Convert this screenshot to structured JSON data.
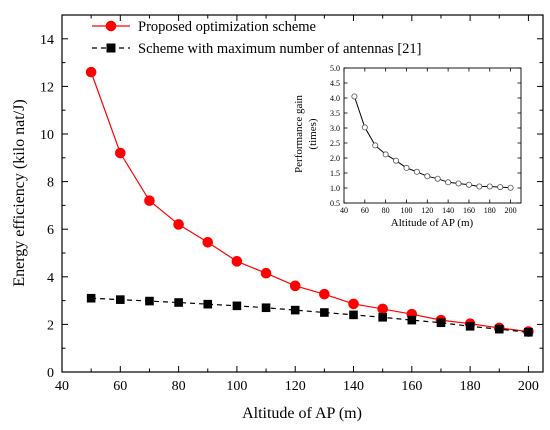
{
  "chart_data": [
    {
      "type": "line",
      "xlabel": "Altitude of AP (m)",
      "ylabel": "Energy efficiency (kilo nat/J)",
      "xlim": [
        40,
        205
      ],
      "ylim": [
        0,
        15
      ],
      "xticks": [
        "40",
        "60",
        "80",
        "100",
        "120",
        "140",
        "160",
        "180",
        "200"
      ],
      "yticks": [
        "0",
        "2",
        "4",
        "6",
        "8",
        "10",
        "12",
        "14"
      ],
      "legend_position": "top-left",
      "x": [
        50,
        60,
        70,
        80,
        90,
        100,
        110,
        120,
        130,
        140,
        150,
        160,
        170,
        180,
        190,
        200
      ],
      "series": [
        {
          "name": "Proposed optimization scheme",
          "color": "#ff0000",
          "line_style": "solid",
          "marker": "circle",
          "values": [
            12.6,
            9.2,
            7.2,
            6.2,
            5.45,
            4.65,
            4.15,
            3.62,
            3.27,
            2.86,
            2.65,
            2.43,
            2.18,
            2.03,
            1.85,
            1.7
          ]
        },
        {
          "name": "Scheme with maximum number of antennas [21]",
          "color": "#000000",
          "line_style": "dashed",
          "marker": "square",
          "values": [
            3.1,
            3.04,
            2.98,
            2.92,
            2.85,
            2.78,
            2.7,
            2.6,
            2.5,
            2.4,
            2.3,
            2.18,
            2.07,
            1.92,
            1.8,
            1.67
          ]
        }
      ]
    },
    {
      "type": "line",
      "position": "inset",
      "xlabel": "Altitude of AP (m)",
      "ylabel": "Performance gain (times)",
      "xlim": [
        40,
        210
      ],
      "ylim": [
        0.5,
        5.0
      ],
      "xticks": [
        "40",
        "60",
        "80",
        "100",
        "120",
        "140",
        "160",
        "180",
        "200"
      ],
      "yticks": [
        "0.5",
        "1.0",
        "1.5",
        "2.0",
        "2.5",
        "3.0",
        "3.5",
        "4.0",
        "4.5",
        "5.0"
      ],
      "x": [
        50,
        60,
        70,
        80,
        90,
        100,
        110,
        120,
        130,
        140,
        150,
        160,
        170,
        180,
        190,
        200
      ],
      "series": [
        {
          "color": "#000000",
          "marker": "open-circle",
          "values": [
            4.05,
            3.02,
            2.42,
            2.12,
            1.91,
            1.67,
            1.54,
            1.39,
            1.31,
            1.19,
            1.15,
            1.11,
            1.05,
            1.05,
            1.03,
            1.01
          ]
        }
      ]
    }
  ]
}
